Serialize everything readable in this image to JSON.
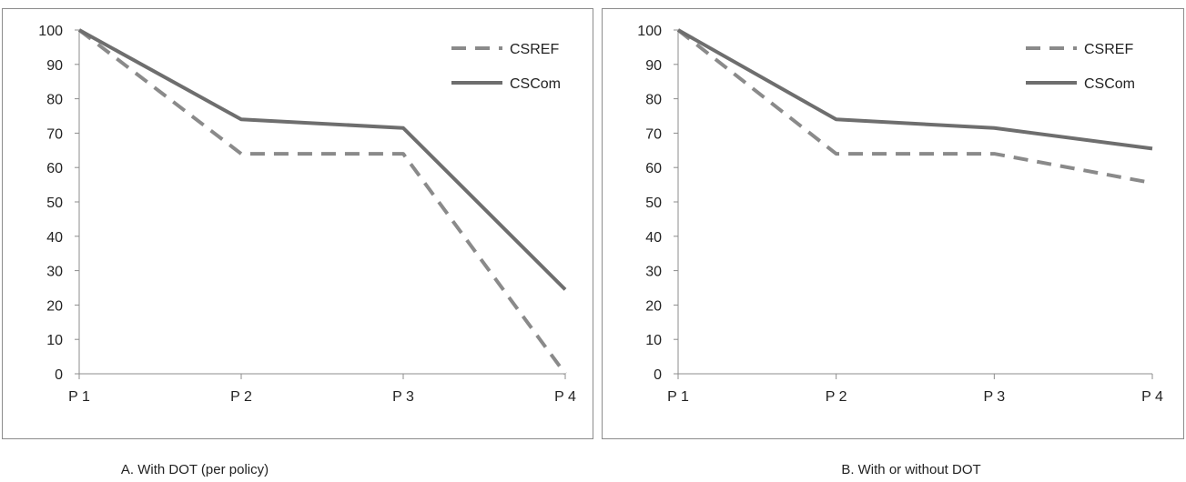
{
  "chart_data": [
    {
      "type": "line",
      "categories": [
        "P 1",
        "P 2",
        "P 3",
        "P 4"
      ],
      "series": [
        {
          "name": "CSREF",
          "values": [
            100,
            64,
            64,
            0
          ],
          "style": "dashed",
          "color": "#8a8a8a"
        },
        {
          "name": "CSCom",
          "values": [
            100,
            74,
            71.5,
            24.5
          ],
          "style": "solid",
          "color": "#6e6e6e"
        }
      ],
      "yticks": [
        0,
        10,
        20,
        30,
        40,
        50,
        60,
        70,
        80,
        90,
        100
      ],
      "ylim": [
        0,
        100
      ],
      "title": "",
      "xlabel": "",
      "ylabel": "",
      "caption": "A. With DOT (per policy)",
      "legend_position": "top-right",
      "grid": false
    },
    {
      "type": "line",
      "categories": [
        "P 1",
        "P 2",
        "P 3",
        "P 4"
      ],
      "series": [
        {
          "name": "CSREF",
          "values": [
            100,
            64,
            64,
            55.5
          ],
          "style": "dashed",
          "color": "#8a8a8a"
        },
        {
          "name": "CSCom",
          "values": [
            100,
            74,
            71.5,
            65.5
          ],
          "style": "solid",
          "color": "#6e6e6e"
        }
      ],
      "yticks": [
        0,
        10,
        20,
        30,
        40,
        50,
        60,
        70,
        80,
        90,
        100
      ],
      "ylim": [
        0,
        100
      ],
      "title": "",
      "xlabel": "",
      "ylabel": "",
      "caption": "B.  With or without DOT",
      "legend_position": "top-right",
      "grid": false
    }
  ]
}
